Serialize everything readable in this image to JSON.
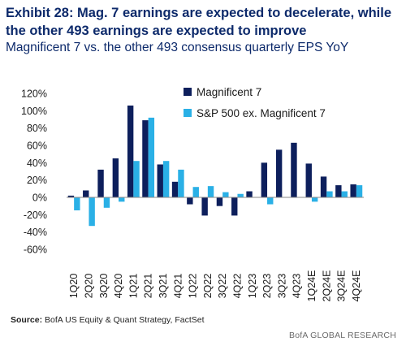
{
  "header": {
    "title": "Exhibit 28: Mag. 7 earnings are expected to decelerate, while the other 493 earnings are expected to improve",
    "subtitle": "Magnificent 7 vs. the other 493 consensus quarterly EPS YoY"
  },
  "footer": {
    "source_label": "Source:",
    "source_text": " BofA US Equity & Quant Strategy, FactSet",
    "brand": "BofA GLOBAL RESEARCH"
  },
  "colors": {
    "mag7": "#0d1f5c",
    "sp493": "#2ab0e6",
    "title": "#0d2a6b"
  },
  "chart_data": {
    "type": "bar",
    "title": "",
    "xlabel": "",
    "ylabel": "",
    "ylim": [
      -60,
      120
    ],
    "yticks": [
      -60,
      -40,
      -20,
      0,
      20,
      40,
      60,
      80,
      100,
      120
    ],
    "ytick_labels": [
      "-60%",
      "-40%",
      "-20%",
      "0%",
      "20%",
      "40%",
      "60%",
      "80%",
      "100%",
      "120%"
    ],
    "legend_position": "top-right",
    "grid": false,
    "categories": [
      "1Q20",
      "2Q20",
      "3Q20",
      "4Q20",
      "1Q21",
      "2Q21",
      "3Q21",
      "4Q21",
      "1Q22",
      "2Q22",
      "3Q22",
      "4Q22",
      "1Q23",
      "2Q23",
      "3Q23",
      "4Q23",
      "1Q24E",
      "2Q24E",
      "3Q24E",
      "4Q24E"
    ],
    "series": [
      {
        "name": "Magnificent 7",
        "values": [
          2,
          8,
          32,
          45,
          106,
          89,
          38,
          18,
          -8,
          -21,
          -10,
          -21,
          7,
          40,
          55,
          63,
          39,
          24,
          14,
          15
        ]
      },
      {
        "name": "S&P 500 ex. Magnificent 7",
        "values": [
          -15,
          -33,
          -12,
          -5,
          42,
          92,
          42,
          32,
          12,
          13,
          6,
          4,
          0,
          -8,
          0,
          0,
          -5,
          7,
          7,
          14
        ]
      }
    ]
  }
}
